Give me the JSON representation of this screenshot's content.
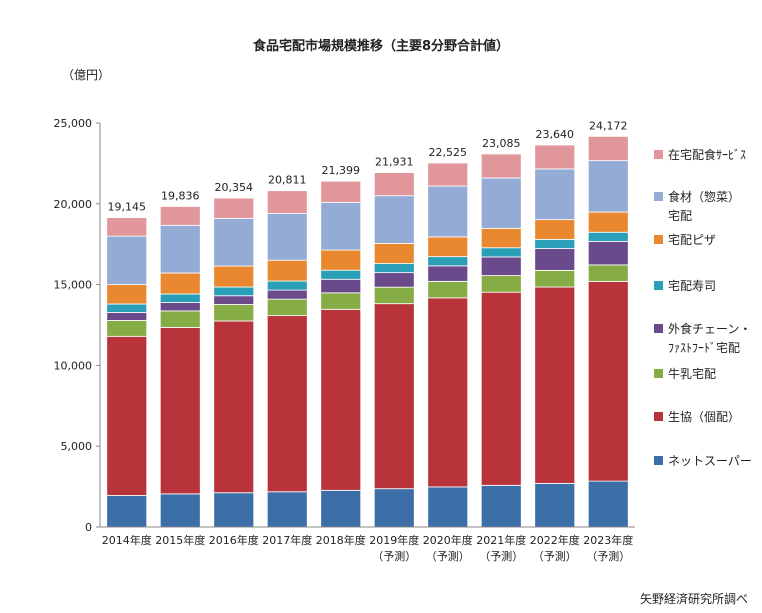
{
  "chart_data": {
    "type": "bar",
    "stacked": true,
    "title": "食品宅配市場規模推移（主要8分野合計値）",
    "unit_label": "（億円）",
    "source": "矢野経済研究所調べ",
    "ylim": [
      0,
      25000
    ],
    "yticks": [
      "0",
      "5,000",
      "10,000",
      "15,000",
      "20,000",
      "25,000"
    ],
    "categories": [
      [
        "2014年度"
      ],
      [
        "2015年度"
      ],
      [
        "2016年度"
      ],
      [
        "2017年度"
      ],
      [
        "2018年度"
      ],
      [
        "2019年度",
        "（予測）"
      ],
      [
        "2020年度",
        "（予測）"
      ],
      [
        "2021年度",
        "（予測）"
      ],
      [
        "2022年度",
        "（予測）"
      ],
      [
        "2023年度",
        "（予測）"
      ]
    ],
    "totals": [
      19145,
      19836,
      20354,
      20811,
      21399,
      21931,
      22525,
      23085,
      23640,
      24172
    ],
    "total_labels": [
      "19,145",
      "19,836",
      "20,354",
      "20,811",
      "21,399",
      "21,931",
      "22,525",
      "23,085",
      "23,640",
      "24,172"
    ],
    "series": [
      {
        "name": "ネットスーパー",
        "color": "#3c6ea8",
        "values": [
          1950,
          2050,
          2120,
          2180,
          2270,
          2370,
          2480,
          2580,
          2700,
          2840
        ]
      },
      {
        "name": "生協（個配）",
        "color": "#b8343a",
        "values": [
          9850,
          10300,
          10630,
          10900,
          11200,
          11450,
          11700,
          11950,
          12150,
          12350
        ]
      },
      {
        "name": "牛乳宅配",
        "color": "#86ad45",
        "values": [
          980,
          1020,
          1020,
          1020,
          1020,
          1020,
          1020,
          1030,
          1030,
          1030
        ]
      },
      {
        "name": "外食チェーン・\nﾌｧｽﾄﾌｰﾄﾞ宅配",
        "color": "#6b4a8c",
        "values": [
          500,
          520,
          540,
          560,
          840,
          900,
          960,
          1150,
          1350,
          1450
        ]
      },
      {
        "name": "宅配寿司",
        "color": "#2aa0b8",
        "values": [
          520,
          530,
          540,
          560,
          560,
          560,
          570,
          570,
          570,
          570
        ]
      },
      {
        "name": "宅配ピザ",
        "color": "#e9882f",
        "values": [
          1200,
          1300,
          1300,
          1290,
          1250,
          1250,
          1220,
          1200,
          1220,
          1250
        ]
      },
      {
        "name": "食材（惣菜）\n宅配",
        "color": "#94abd6",
        "values": [
          3000,
          2950,
          2950,
          2900,
          2950,
          2950,
          3150,
          3120,
          3140,
          3180
        ]
      },
      {
        "name": "在宅配食ｻｰﾋﾞｽ",
        "color": "#e0969a",
        "values": [
          1145,
          1166,
          1254,
          1401,
          1309,
          1431,
          1425,
          1485,
          1480,
          1502
        ]
      }
    ],
    "legend_order": [
      7,
      6,
      5,
      4,
      3,
      2,
      1,
      0
    ],
    "legend_position": "right",
    "grid": false
  }
}
